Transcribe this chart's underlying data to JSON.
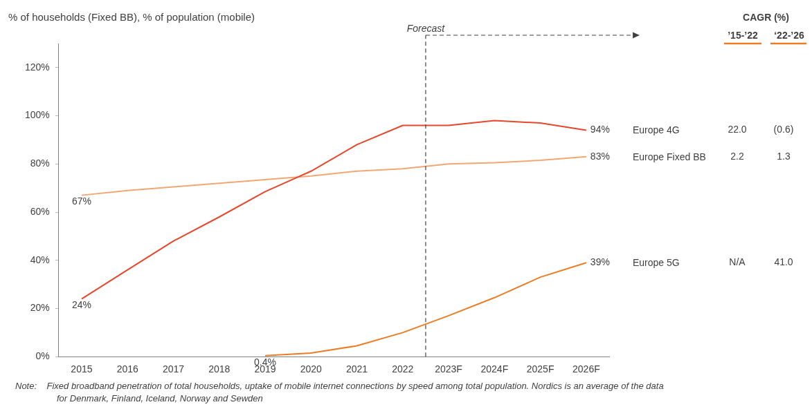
{
  "chart_data": {
    "type": "line",
    "ylabel": "% of households (Fixed BB), % of population (mobile)",
    "x": [
      2015,
      2016,
      2017,
      2018,
      2019,
      2020,
      2021,
      2022,
      2023,
      2024,
      2025,
      2026
    ],
    "xlim": [
      2014.5,
      2026.5
    ],
    "xticks": [
      2015,
      2016,
      2017,
      2018,
      2019,
      2020,
      2021,
      2022,
      {
        "value": 2023,
        "label": "2023F"
      },
      {
        "value": 2024,
        "label": "2024F"
      },
      {
        "value": 2025,
        "label": "2025F"
      },
      {
        "value": 2026,
        "label": "2026F"
      }
    ],
    "ylim": [
      0,
      130
    ],
    "yticks": [
      {
        "value": 0,
        "label": "0%"
      },
      {
        "value": 20,
        "label": "20%"
      },
      {
        "value": 40,
        "label": "40%"
      },
      {
        "value": 60,
        "label": "60%"
      },
      {
        "value": 80,
        "label": "80%"
      },
      {
        "value": 100,
        "label": "100%"
      },
      {
        "value": 120,
        "label": "120%"
      }
    ],
    "grid": false,
    "legend": false,
    "marker": "none",
    "line_style": "solid",
    "series": [
      {
        "name": "Europe 4G",
        "color": "#e8462a",
        "values": [
          24,
          36,
          48,
          58,
          68.5,
          77,
          88,
          96,
          96,
          98,
          97,
          94
        ],
        "value_labels": [
          "24%",
          null,
          null,
          null,
          null,
          null,
          null,
          null,
          null,
          null,
          null,
          "94%"
        ]
      },
      {
        "name": "Europe Fixed BB",
        "color": "#f4a672",
        "values": [
          67,
          69,
          70.5,
          72,
          73.5,
          75,
          77,
          78,
          80,
          80.5,
          81.5,
          83
        ],
        "value_labels": [
          "67%",
          null,
          null,
          null,
          null,
          null,
          null,
          null,
          null,
          null,
          null,
          "83%"
        ]
      },
      {
        "name": "Europe 5G",
        "color": "#ee7b22",
        "values": [
          null,
          null,
          null,
          null,
          0.4,
          1.5,
          4.5,
          10,
          17,
          24.5,
          33,
          39
        ],
        "value_labels": [
          null,
          null,
          null,
          null,
          "0.4%",
          null,
          null,
          null,
          null,
          null,
          null,
          "39%"
        ]
      }
    ],
    "ref_lines": [
      {
        "axis": "x",
        "value": 2022.5,
        "label": "Forecast",
        "color": "#404040",
        "line_style": "dashed"
      }
    ],
    "annotations": [
      "CAGR (%)",
      "’15-’22",
      "‘22-’26",
      "22.0",
      "(0.6)",
      "2.2",
      "1.3",
      "N/A",
      "41.0",
      "Note:    Fixed broadband penetration of total households, uptake of mobile internet connections by speed among total population. Nordics is an average of the data",
      "for Denmark, Finland, Iceland, Norway and Sewden"
    ]
  }
}
